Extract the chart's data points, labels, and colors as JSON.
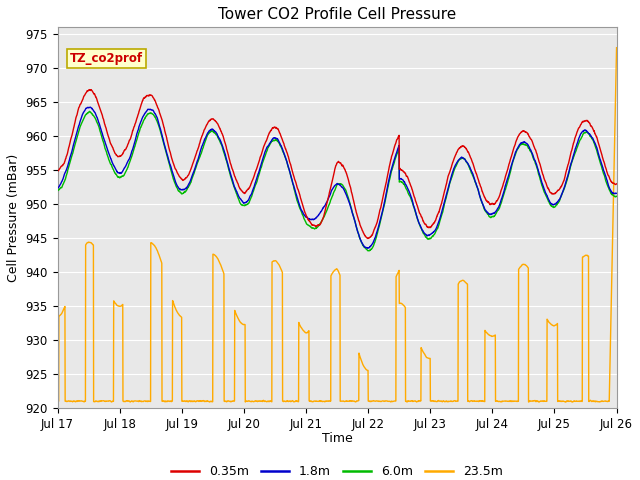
{
  "title": "Tower CO2 Profile Cell Pressure",
  "ylabel": "Cell Pressure (mBar)",
  "xlabel": "Time",
  "legend_label": "TZ_co2prof",
  "ylim": [
    920,
    976
  ],
  "series": {
    "0.35m": {
      "color": "#dd0000",
      "lw": 1.0
    },
    "1.8m": {
      "color": "#0000cc",
      "lw": 1.0
    },
    "6.0m": {
      "color": "#00bb00",
      "lw": 1.0
    },
    "23.5m": {
      "color": "#ffaa00",
      "lw": 1.0
    }
  },
  "legend_entries": [
    {
      "label": "0.35m",
      "color": "#dd0000"
    },
    {
      "label": "1.8m",
      "color": "#0000cc"
    },
    {
      "label": "6.0m",
      "color": "#00bb00"
    },
    {
      "label": "23.5m",
      "color": "#ffaa00"
    }
  ],
  "xtick_labels": [
    "Jul 17",
    "Jul 18",
    "Jul 19",
    "Jul 20",
    "Jul 21",
    "Jul 22",
    "Jul 23",
    "Jul 24",
    "Jul 25",
    "Jul 26"
  ],
  "bg_color": "#e8e8e8",
  "fig_color": "#ffffff",
  "grid_color": "#ffffff"
}
